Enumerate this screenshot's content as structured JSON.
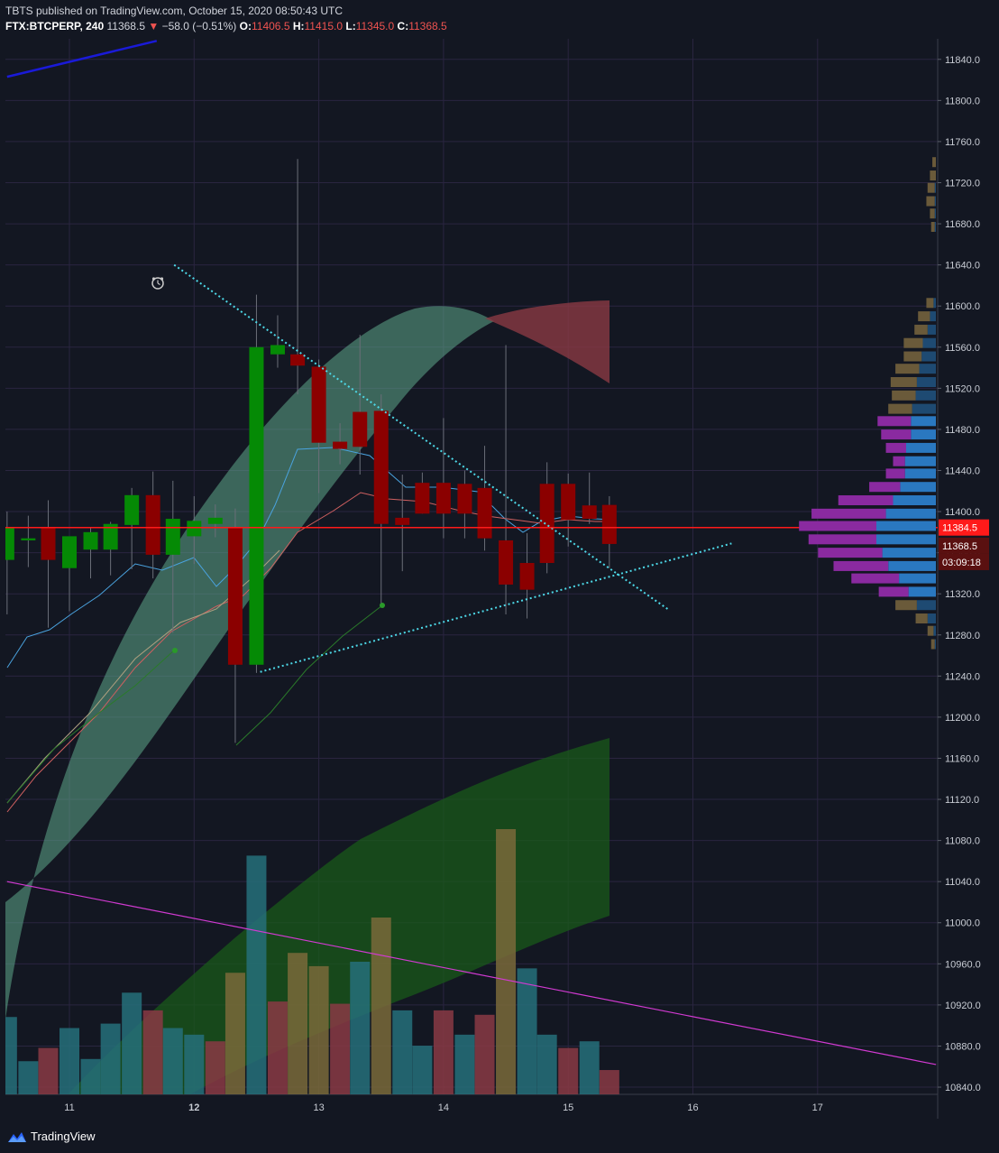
{
  "header": {
    "line1": "TBTS published on TradingView.com, October 15, 2020 08:50:43 UTC",
    "symbol": "FTX:BTCPERP, 240",
    "price": "11368.5",
    "change": "−58.0 (−0.51%)",
    "o_label": "O:",
    "o_value": "11406.5",
    "h_label": "H:",
    "h_value": "11415.0",
    "l_label": "L:",
    "l_value": "11345.0",
    "c_label": "C:",
    "c_value": "11368.5"
  },
  "footer": {
    "brand": "TradingView"
  },
  "colors": {
    "background": "#131722",
    "grid": "#2a2540",
    "bull": "#058a05",
    "bear": "#8b0000",
    "last_price": "#ff1a1a",
    "trendline": "#4dd9e8",
    "vol_teal": "#26707a",
    "vol_red": "#8a3a44",
    "vol_olive": "#7a6a3a"
  },
  "chart_data": {
    "type": "candlestick",
    "interval": "240",
    "symbol": "FTX:BTCPERP",
    "x_ticks": [
      "11",
      "12",
      "13",
      "14",
      "15",
      "16",
      "17"
    ],
    "y_ticks": [
      11840.0,
      11800.0,
      11760.0,
      11720.0,
      11680.0,
      11640.0,
      11600.0,
      11560.0,
      11520.0,
      11480.0,
      11440.0,
      11400.0,
      11360.0,
      11320.0,
      11280.0,
      11240.0,
      11200.0,
      11160.0,
      11120.0,
      11080.0,
      11040.0,
      11000.0,
      10960.0,
      10920.0,
      10880.0,
      10840.0
    ],
    "ylim": [
      10833,
      11860
    ],
    "last_price_label": "11384.5",
    "current_price_label": "11368.5",
    "countdown_label": "03:09:18",
    "candles": [
      {
        "day": 10.5,
        "o": 11353,
        "h": 11400,
        "l": 11300,
        "c": 11385
      },
      {
        "day": 10.67,
        "o": 11372,
        "h": 11396,
        "l": 11346,
        "c": 11374
      },
      {
        "day": 10.83,
        "o": 11385,
        "h": 11411,
        "l": 11287,
        "c": 11353
      },
      {
        "day": 11.0,
        "o": 11345,
        "h": 11373,
        "l": 11303,
        "c": 11376
      },
      {
        "day": 11.17,
        "o": 11363,
        "h": 11385,
        "l": 11335,
        "c": 11380
      },
      {
        "day": 11.33,
        "o": 11363,
        "h": 11390,
        "l": 11338,
        "c": 11388
      },
      {
        "day": 11.5,
        "o": 11387,
        "h": 11423,
        "l": 11344,
        "c": 11416
      },
      {
        "day": 11.67,
        "o": 11416,
        "h": 11439,
        "l": 11335,
        "c": 11358
      },
      {
        "day": 11.83,
        "o": 11358,
        "h": 11430,
        "l": 11282,
        "c": 11393
      },
      {
        "day": 12.0,
        "o": 11376,
        "h": 11415,
        "l": 11349,
        "c": 11391
      },
      {
        "day": 12.17,
        "o": 11388,
        "h": 11407,
        "l": 11375,
        "c": 11394
      },
      {
        "day": 12.33,
        "o": 11384,
        "h": 11403,
        "l": 11175,
        "c": 11251
      },
      {
        "day": 12.5,
        "o": 11251,
        "h": 11611,
        "l": 11243,
        "c": 11560
      },
      {
        "day": 12.67,
        "o": 11553,
        "h": 11591,
        "l": 11540,
        "c": 11562
      },
      {
        "day": 12.83,
        "o": 11553,
        "h": 11743,
        "l": 11514,
        "c": 11542
      },
      {
        "day": 13.0,
        "o": 11541,
        "h": 11548,
        "l": 11418,
        "c": 11467
      },
      {
        "day": 13.17,
        "o": 11468,
        "h": 11486,
        "l": 11446,
        "c": 11461
      },
      {
        "day": 13.33,
        "o": 11497,
        "h": 11572,
        "l": 11436,
        "c": 11463
      },
      {
        "day": 13.5,
        "o": 11498,
        "h": 11514,
        "l": 11311,
        "c": 11388
      },
      {
        "day": 13.67,
        "o": 11394,
        "h": 11436,
        "l": 11342,
        "c": 11387
      },
      {
        "day": 13.83,
        "o": 11428,
        "h": 11438,
        "l": 11398,
        "c": 11398
      },
      {
        "day": 14.0,
        "o": 11428,
        "h": 11491,
        "l": 11374,
        "c": 11398
      },
      {
        "day": 14.17,
        "o": 11427,
        "h": 11440,
        "l": 11374,
        "c": 11398
      },
      {
        "day": 14.33,
        "o": 11423,
        "h": 11464,
        "l": 11362,
        "c": 11374
      },
      {
        "day": 14.5,
        "o": 11372,
        "h": 11562,
        "l": 11300,
        "c": 11329
      },
      {
        "day": 14.67,
        "o": 11350,
        "h": 11379,
        "l": 11296,
        "c": 11324
      },
      {
        "day": 14.83,
        "o": 11427,
        "h": 11448,
        "l": 11340,
        "c": 11350
      },
      {
        "day": 15.0,
        "o": 11427,
        "h": 11437,
        "l": 11366,
        "c": 11392
      },
      {
        "day": 15.17,
        "o": 11406,
        "h": 11438,
        "l": 11388,
        "c": 11393
      },
      {
        "day": 15.33,
        "o": 11406.5,
        "h": 11415,
        "l": 11345,
        "c": 11368.5
      }
    ],
    "volume": [
      {
        "h": 0.35,
        "color": "teal"
      },
      {
        "h": 0.15,
        "color": "teal"
      },
      {
        "h": 0.21,
        "color": "red"
      },
      {
        "h": 0.3,
        "color": "teal"
      },
      {
        "h": 0.16,
        "color": "teal"
      },
      {
        "h": 0.32,
        "color": "teal"
      },
      {
        "h": 0.46,
        "color": "teal"
      },
      {
        "h": 0.38,
        "color": "red"
      },
      {
        "h": 0.3,
        "color": "teal"
      },
      {
        "h": 0.27,
        "color": "teal"
      },
      {
        "h": 0.24,
        "color": "red"
      },
      {
        "h": 0.55,
        "color": "olive"
      },
      {
        "h": 1.08,
        "color": "teal"
      },
      {
        "h": 0.42,
        "color": "red"
      },
      {
        "h": 0.64,
        "color": "olive"
      },
      {
        "h": 0.58,
        "color": "olive"
      },
      {
        "h": 0.41,
        "color": "red"
      },
      {
        "h": 0.6,
        "color": "teal"
      },
      {
        "h": 0.8,
        "color": "olive"
      },
      {
        "h": 0.38,
        "color": "teal"
      },
      {
        "h": 0.22,
        "color": "teal"
      },
      {
        "h": 0.38,
        "color": "red"
      },
      {
        "h": 0.27,
        "color": "teal"
      },
      {
        "h": 0.36,
        "color": "red"
      },
      {
        "h": 1.2,
        "color": "olive"
      },
      {
        "h": 0.57,
        "color": "teal"
      },
      {
        "h": 0.27,
        "color": "teal"
      },
      {
        "h": 0.21,
        "color": "red"
      },
      {
        "h": 0.24,
        "color": "teal"
      },
      {
        "h": 0.11,
        "color": "red"
      }
    ],
    "overlays": {
      "descending_trendline": {
        "from": {
          "day": 11.84,
          "price": 11640
        },
        "to": {
          "day": 15.8,
          "price": 11305
        }
      },
      "ascending_trendline": {
        "from": {
          "day": 12.53,
          "price": 11244
        },
        "to": {
          "day": 16.31,
          "price": 11369
        }
      },
      "magenta_line": {
        "from": {
          "day": 10.5,
          "price": 11040
        },
        "to": {
          "day": 17.95,
          "price": 10862
        }
      },
      "blue_line": {
        "from": {
          "day": 10.5,
          "price": 11823
        },
        "to": {
          "day": 11.7,
          "price": 11858
        }
      },
      "last_price_line": 11384.5
    },
    "volume_profile_bins": [
      {
        "price": 11740,
        "left": 0.06,
        "right": 0.0
      },
      {
        "price": 11727,
        "left": 0.1,
        "right": 0.0
      },
      {
        "price": 11715,
        "left": 0.12,
        "right": 0.02
      },
      {
        "price": 11702,
        "left": 0.14,
        "right": 0.02
      },
      {
        "price": 11690,
        "left": 0.08,
        "right": 0.02
      },
      {
        "price": 11677,
        "left": 0.06,
        "right": 0.02
      },
      {
        "price": 11603,
        "left": 0.12,
        "right": 0.04
      },
      {
        "price": 11590,
        "left": 0.2,
        "right": 0.1
      },
      {
        "price": 11577,
        "left": 0.22,
        "right": 0.14
      },
      {
        "price": 11564,
        "left": 0.32,
        "right": 0.22
      },
      {
        "price": 11551,
        "left": 0.3,
        "right": 0.24
      },
      {
        "price": 11539,
        "left": 0.4,
        "right": 0.28
      },
      {
        "price": 11526,
        "left": 0.44,
        "right": 0.32
      },
      {
        "price": 11513,
        "left": 0.4,
        "right": 0.34
      },
      {
        "price": 11500,
        "left": 0.4,
        "right": 0.4
      },
      {
        "price": 11488,
        "left": 0.56,
        "right": 0.42
      },
      {
        "price": 11475,
        "left": 0.5,
        "right": 0.42
      },
      {
        "price": 11462,
        "left": 0.34,
        "right": 0.5
      },
      {
        "price": 11449,
        "left": 0.2,
        "right": 0.52
      },
      {
        "price": 11437,
        "left": 0.32,
        "right": 0.52
      },
      {
        "price": 11424,
        "left": 0.52,
        "right": 0.6
      },
      {
        "price": 11411,
        "left": 0.92,
        "right": 0.72
      },
      {
        "price": 11398,
        "left": 1.25,
        "right": 0.84
      },
      {
        "price": 11386,
        "left": 1.3,
        "right": 1.0
      },
      {
        "price": 11373,
        "left": 1.14,
        "right": 1.0
      },
      {
        "price": 11360,
        "left": 1.08,
        "right": 0.9
      },
      {
        "price": 11347,
        "left": 0.92,
        "right": 0.8
      },
      {
        "price": 11335,
        "left": 0.8,
        "right": 0.62
      },
      {
        "price": 11322,
        "left": 0.5,
        "right": 0.46
      },
      {
        "price": 11309,
        "left": 0.36,
        "right": 0.32
      },
      {
        "price": 11296,
        "left": 0.2,
        "right": 0.14
      },
      {
        "price": 11284,
        "left": 0.1,
        "right": 0.04
      },
      {
        "price": 11271,
        "left": 0.06,
        "right": 0.02
      }
    ]
  }
}
